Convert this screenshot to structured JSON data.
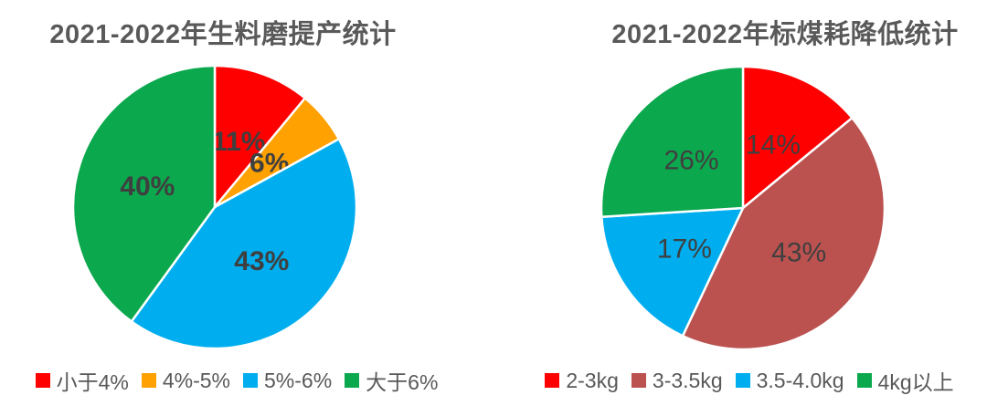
{
  "page": {
    "background_color": "#ffffff",
    "title_color": "#595959",
    "slice_label_color": "#3F3F3F",
    "legend_text_color": "#595959",
    "slice_separator_color": "#ffffff"
  },
  "chart_data": [
    {
      "type": "pie",
      "title": "2021-2022年生料磨提产统计",
      "categories": [
        "小于4%",
        "4%-5%",
        "5%-6%",
        "大于6%"
      ],
      "values": [
        11,
        6,
        43,
        40
      ],
      "labels": [
        "11%",
        "6%",
        "43%",
        "40%"
      ],
      "colors": [
        "#FE0000",
        "#FFA101",
        "#00AEEF",
        "#0CA84E"
      ],
      "unit": "%",
      "start_angle_deg": 0,
      "direction": "clockwise",
      "legend_position": "bottom",
      "label_style": "bold"
    },
    {
      "type": "pie",
      "title": "2021-2022年标煤耗降低统计",
      "categories": [
        "2-3kg",
        "3-3.5kg",
        "3.5-4.0kg",
        "4kg以上"
      ],
      "values": [
        14,
        43,
        17,
        26
      ],
      "labels": [
        "14%",
        "43%",
        "17%",
        "26%"
      ],
      "colors": [
        "#FE0000",
        "#BB524F",
        "#00AEEF",
        "#0CA84E"
      ],
      "unit": "%",
      "start_angle_deg": 0,
      "direction": "clockwise",
      "legend_position": "bottom",
      "label_style": "regular"
    }
  ]
}
